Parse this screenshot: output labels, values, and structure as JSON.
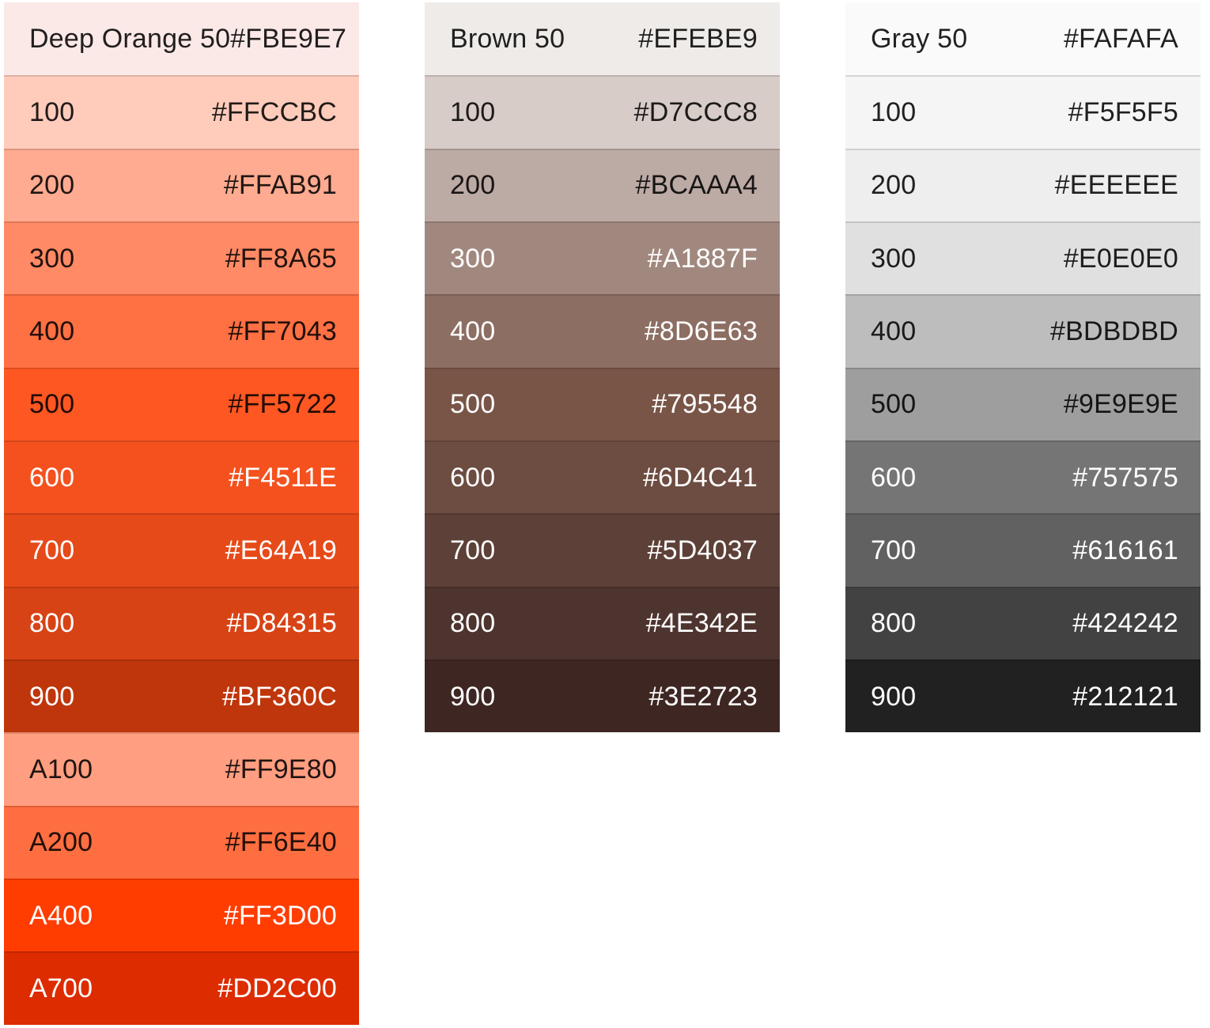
{
  "text_colors": {
    "dark": "rgba(0, 0, 0, 0.87)",
    "light": "#FFFFFF"
  },
  "palettes": [
    {
      "name": "Deep Orange",
      "rows": [
        {
          "shade": "50",
          "label": "Deep Orange 50",
          "hex": "#FBE9E7",
          "text_style": "dark"
        },
        {
          "shade": "100",
          "label": "100",
          "hex": "#FFCCBC",
          "text_style": "dark"
        },
        {
          "shade": "200",
          "label": "200",
          "hex": "#FFAB91",
          "text_style": "dark"
        },
        {
          "shade": "300",
          "label": "300",
          "hex": "#FF8A65",
          "text_style": "dark"
        },
        {
          "shade": "400",
          "label": "400",
          "hex": "#FF7043",
          "text_style": "dark"
        },
        {
          "shade": "500",
          "label": "500",
          "hex": "#FF5722",
          "text_style": "dark"
        },
        {
          "shade": "600",
          "label": "600",
          "hex": "#F4511E",
          "text_style": "light"
        },
        {
          "shade": "700",
          "label": "700",
          "hex": "#E64A19",
          "text_style": "light"
        },
        {
          "shade": "800",
          "label": "800",
          "hex": "#D84315",
          "text_style": "light"
        },
        {
          "shade": "900",
          "label": "900",
          "hex": "#BF360C",
          "text_style": "light"
        },
        {
          "shade": "A100",
          "label": "A100",
          "hex": "#FF9E80",
          "text_style": "dark"
        },
        {
          "shade": "A200",
          "label": "A200",
          "hex": "#FF6E40",
          "text_style": "dark"
        },
        {
          "shade": "A400",
          "label": "A400",
          "hex": "#FF3D00",
          "text_style": "light"
        },
        {
          "shade": "A700",
          "label": "A700",
          "hex": "#DD2C00",
          "text_style": "light"
        }
      ]
    },
    {
      "name": "Brown",
      "rows": [
        {
          "shade": "50",
          "label": "Brown 50",
          "hex": "#EFEBE9",
          "text_style": "dark"
        },
        {
          "shade": "100",
          "label": "100",
          "hex": "#D7CCC8",
          "text_style": "dark"
        },
        {
          "shade": "200",
          "label": "200",
          "hex": "#BCAAA4",
          "text_style": "dark"
        },
        {
          "shade": "300",
          "label": "300",
          "hex": "#A1887F",
          "text_style": "light"
        },
        {
          "shade": "400",
          "label": "400",
          "hex": "#8D6E63",
          "text_style": "light"
        },
        {
          "shade": "500",
          "label": "500",
          "hex": "#795548",
          "text_style": "light"
        },
        {
          "shade": "600",
          "label": "600",
          "hex": "#6D4C41",
          "text_style": "light"
        },
        {
          "shade": "700",
          "label": "700",
          "hex": "#5D4037",
          "text_style": "light"
        },
        {
          "shade": "800",
          "label": "800",
          "hex": "#4E342E",
          "text_style": "light"
        },
        {
          "shade": "900",
          "label": "900",
          "hex": "#3E2723",
          "text_style": "light"
        }
      ]
    },
    {
      "name": "Gray",
      "rows": [
        {
          "shade": "50",
          "label": "Gray 50",
          "hex": "#FAFAFA",
          "text_style": "dark"
        },
        {
          "shade": "100",
          "label": "100",
          "hex": "#F5F5F5",
          "text_style": "dark"
        },
        {
          "shade": "200",
          "label": "200",
          "hex": "#EEEEEE",
          "text_style": "dark"
        },
        {
          "shade": "300",
          "label": "300",
          "hex": "#E0E0E0",
          "text_style": "dark"
        },
        {
          "shade": "400",
          "label": "400",
          "hex": "#BDBDBD",
          "text_style": "dark"
        },
        {
          "shade": "500",
          "label": "500",
          "hex": "#9E9E9E",
          "text_style": "dark"
        },
        {
          "shade": "600",
          "label": "600",
          "hex": "#757575",
          "text_style": "light"
        },
        {
          "shade": "700",
          "label": "700",
          "hex": "#616161",
          "text_style": "light"
        },
        {
          "shade": "800",
          "label": "800",
          "hex": "#424242",
          "text_style": "light"
        },
        {
          "shade": "900",
          "label": "900",
          "hex": "#212121",
          "text_style": "light"
        }
      ]
    }
  ]
}
